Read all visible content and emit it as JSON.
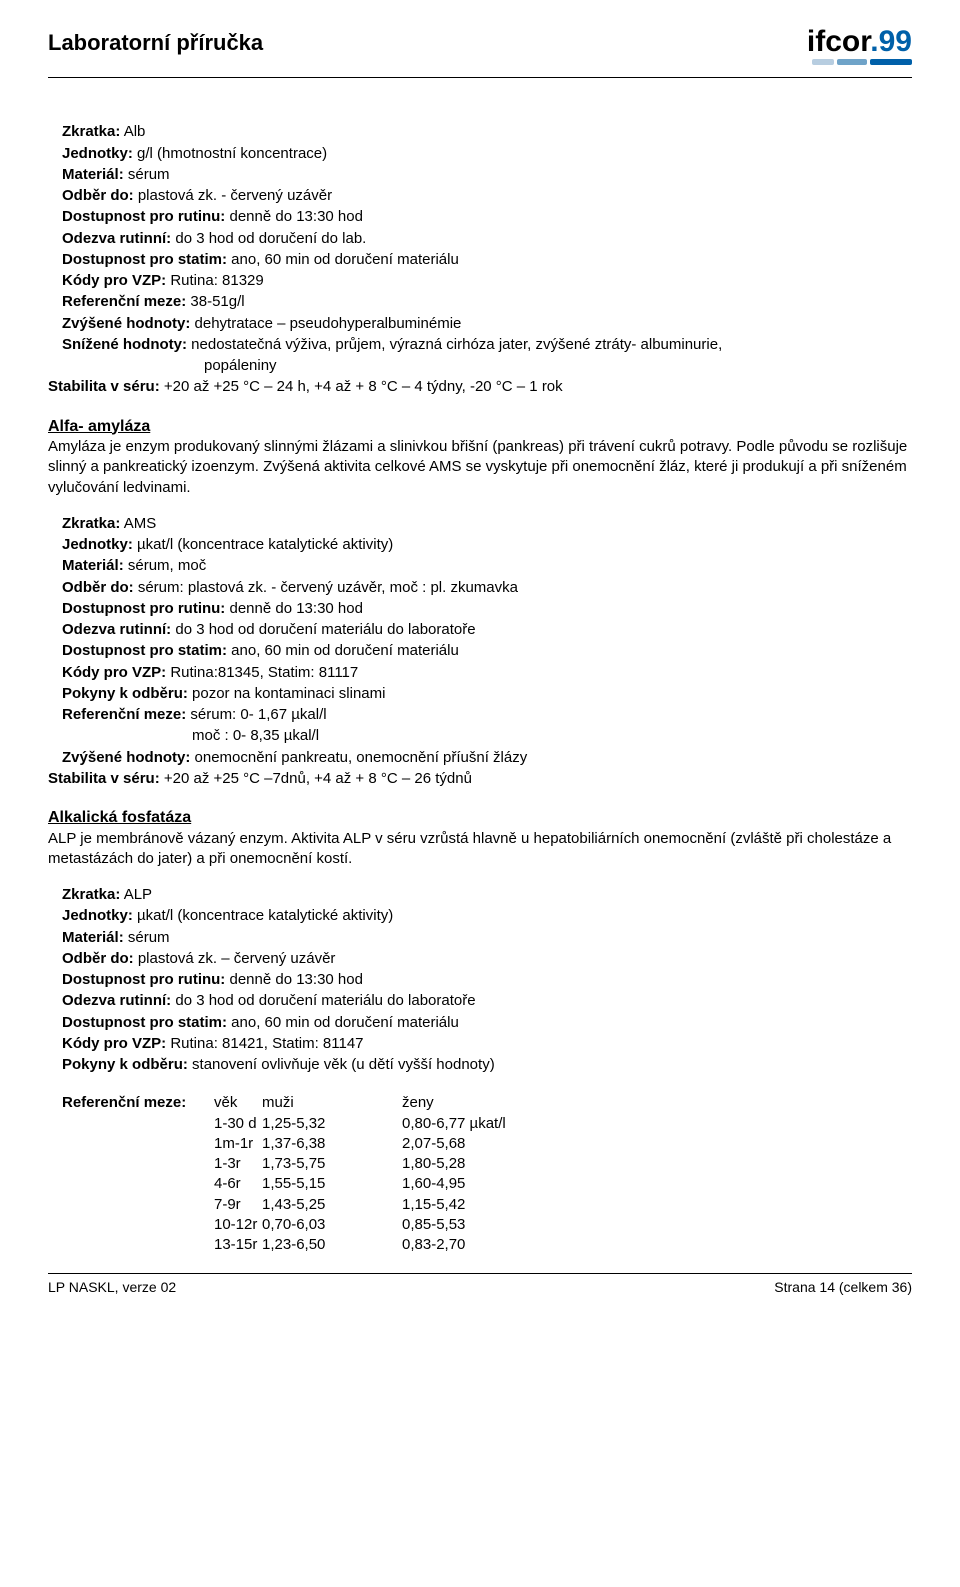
{
  "header": {
    "title": "Laboratorní příručka",
    "logo_text": "ifcor",
    "logo_suffix": ".99",
    "logo_bar_colors": [
      "#b7cde0",
      "#6fa3c8",
      "#0060a9"
    ],
    "logo_bar_widths": [
      22,
      30,
      42
    ]
  },
  "alb": {
    "zkratka_label": "Zkratka:",
    "zkratka": " Alb",
    "jednotky_label": "Jednotky:",
    "jednotky": " g/l (hmotnostní koncentrace)",
    "material_label": "Materiál:",
    "material": " sérum",
    "odber_label": "Odběr do:",
    "odber": " plastová zk. - červený uzávěr",
    "dost_rutinu_label": "Dostupnost pro rutinu:",
    "dost_rutinu": " denně do 13:30 hod",
    "odezva_label": "Odezva rutinní:",
    "odezva": " do 3 hod od doručení do lab.",
    "dost_statim_label": "Dostupnost pro statim:",
    "dost_statim": " ano, 60 min od doručení materiálu",
    "kody_label": "Kódy pro VZP:",
    "kody": " Rutina: 81329",
    "refmeze_label": "Referenční meze:",
    "refmeze": " 38-51g/l",
    "zvysene_label": "Zvýšené hodnoty:",
    "zvysene": " dehytratace – pseudohyperalbuminémie",
    "snizene_label": "Snížené hodnoty:",
    "snizene": " nedostatečná výživa, průjem, výrazná cirhóza jater, zvýšené ztráty- albuminurie,",
    "snizene2": "popáleniny",
    "stabilita_label": "Stabilita v séru:",
    "stabilita": " +20 až +25 °C – 24 h, +4 až + 8 °C – 4 týdny, -20 °C – 1 rok"
  },
  "alfa": {
    "title": "Alfa- amyláza",
    "desc": "Amyláza je enzym produkovaný slinnými žlázami a slinivkou břišní (pankreas) při trávení cukrů potravy. Podle původu se rozlišuje slinný a pankreatický izoenzym. Zvýšená aktivita celkové AMS se vyskytuje při onemocnění žláz, které ji produkují a při sníženém vylučování ledvinami.",
    "zkratka_label": "Zkratka:",
    "zkratka": " AMS",
    "jednotky_label": "Jednotky:",
    "jednotky": " µkat/l (koncentrace katalytické aktivity)",
    "material_label": "Materiál:",
    "material": " sérum, moč",
    "odber_label": "Odběr do:",
    "odber": " sérum: plastová zk. - červený uzávěr, moč : pl. zkumavka",
    "dost_rutinu_label": "Dostupnost pro rutinu:",
    "dost_rutinu": " denně do 13:30 hod",
    "odezva_label": "Odezva rutinní:",
    "odezva": " do 3 hod od doručení materiálu do laboratoře",
    "dost_statim_label": "Dostupnost pro statim:",
    "dost_statim": " ano, 60 min od doručení materiálu",
    "kody_label": "Kódy pro VZP:",
    "kody": " Rutina:81345, Statim: 81117",
    "pokyny_label": "Pokyny k odběru:",
    "pokyny": " pozor na kontaminaci slinami",
    "refmeze_label": "Referenční meze:",
    "refmeze1": " sérum: 0- 1,67 µkal/l",
    "refmeze2": "moč :   0- 8,35 µkal/l",
    "zvysene_label": "Zvýšené hodnoty:",
    "zvysene": " onemocnění pankreatu, onemocnění příušní žlázy",
    "stabilita_label": "Stabilita v séru:",
    "stabilita": " +20 až +25 °C –7dnů, +4 až + 8 °C – 26 týdnů"
  },
  "alp": {
    "title": "Alkalická fosfatáza",
    "desc": "ALP je membránově vázaný enzym. Aktivita ALP v séru vzrůstá hlavně u hepatobiliárních onemocnění (zvláště při cholestáze a metastázách do jater) a při onemocnění kostí.",
    "zkratka_label": "Zkratka:",
    "zkratka": " ALP",
    "jednotky_label": "Jednotky:",
    "jednotky": " µkat/l (koncentrace katalytické aktivity)",
    "material_label": "Materiál:",
    "material": " sérum",
    "odber_label": "Odběr do:",
    "odber": " plastová zk. – červený uzávěr",
    "dost_rutinu_label": "Dostupnost pro rutinu:",
    "dost_rutinu": " denně do 13:30 hod",
    "odezva_label": "Odezva rutinní:",
    "odezva": " do 3 hod od doručení materiálu do laboratoře",
    "dost_statim_label": "Dostupnost pro statim:",
    "dost_statim": " ano, 60 min od doručení materiálu",
    "kody_label": "Kódy pro VZP:",
    "kody": " Rutina: 81421, Statim: 81147",
    "pokyny_label": "Pokyny k odběru:",
    "pokyny": " stanovení ovlivňuje věk (u dětí vyšší hodnoty)",
    "refmeze_label": "Referenční meze:",
    "ref_head_age": "věk",
    "ref_head_m": "muži",
    "ref_head_f": "ženy",
    "rows": [
      {
        "age": "1-30 d",
        "m": "1,25-5,32",
        "f": "0,80-6,77 µkat/l"
      },
      {
        "age": "1m-1r",
        "m": "1,37-6,38",
        "f": "2,07-5,68"
      },
      {
        "age": "1-3r",
        "m": "1,73-5,75",
        "f": "1,80-5,28"
      },
      {
        "age": "4-6r",
        "m": "1,55-5,15",
        "f": "1,60-4,95"
      },
      {
        "age": "7-9r",
        "m": "1,43-5,25",
        "f": "1,15-5,42"
      },
      {
        "age": "10-12r",
        "m": "0,70-6,03",
        "f": "0,85-5,53"
      },
      {
        "age": "13-15r",
        "m": "1,23-6,50",
        "f": "0,83-2,70"
      }
    ]
  },
  "footer": {
    "left": "LP NASKL, verze 02",
    "right": "Strana 14 (celkem 36)"
  }
}
